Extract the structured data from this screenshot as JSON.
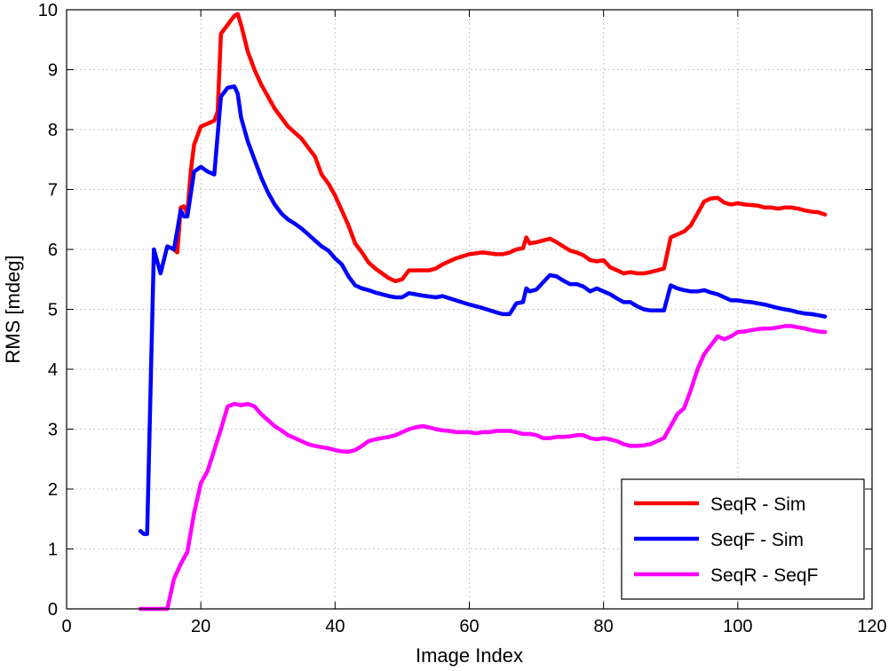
{
  "chart_data": {
    "type": "line",
    "title": "",
    "xlabel": "Image Index",
    "ylabel": "RMS [mdeg]",
    "xlim": [
      0,
      120
    ],
    "ylim": [
      0,
      10
    ],
    "xticks": [
      0,
      20,
      40,
      60,
      80,
      100,
      120
    ],
    "yticks": [
      0,
      1,
      2,
      3,
      4,
      5,
      6,
      7,
      8,
      9,
      10
    ],
    "grid": true,
    "legend_position": "bottom-right",
    "series": [
      {
        "name": "SeqR - Sim",
        "color": "#ff0000",
        "points": [
          [
            16,
            6.0
          ],
          [
            16.5,
            5.95
          ],
          [
            17,
            6.7
          ],
          [
            17.5,
            6.72
          ],
          [
            18,
            6.6
          ],
          [
            18.5,
            7.3
          ],
          [
            19,
            7.75
          ],
          [
            20,
            8.05
          ],
          [
            21,
            8.1
          ],
          [
            22,
            8.15
          ],
          [
            22.5,
            8.3
          ],
          [
            23,
            9.6
          ],
          [
            24,
            9.75
          ],
          [
            25,
            9.9
          ],
          [
            25.5,
            9.93
          ],
          [
            26,
            9.75
          ],
          [
            27,
            9.3
          ],
          [
            28,
            9.0
          ],
          [
            29,
            8.75
          ],
          [
            30,
            8.55
          ],
          [
            31,
            8.35
          ],
          [
            32,
            8.2
          ],
          [
            33,
            8.05
          ],
          [
            34,
            7.95
          ],
          [
            35,
            7.85
          ],
          [
            36,
            7.7
          ],
          [
            37,
            7.55
          ],
          [
            38,
            7.25
          ],
          [
            39,
            7.1
          ],
          [
            40,
            6.9
          ],
          [
            41,
            6.65
          ],
          [
            42,
            6.4
          ],
          [
            43,
            6.1
          ],
          [
            44,
            5.95
          ],
          [
            45,
            5.78
          ],
          [
            46,
            5.68
          ],
          [
            47,
            5.6
          ],
          [
            48,
            5.52
          ],
          [
            49,
            5.47
          ],
          [
            50,
            5.5
          ],
          [
            51,
            5.65
          ],
          [
            52,
            5.65
          ],
          [
            54,
            5.65
          ],
          [
            55,
            5.68
          ],
          [
            56,
            5.75
          ],
          [
            57,
            5.8
          ],
          [
            58,
            5.85
          ],
          [
            60,
            5.92
          ],
          [
            62,
            5.95
          ],
          [
            64,
            5.92
          ],
          [
            65,
            5.92
          ],
          [
            66,
            5.95
          ],
          [
            67,
            6.0
          ],
          [
            68,
            6.02
          ],
          [
            68.5,
            6.2
          ],
          [
            69,
            6.1
          ],
          [
            70,
            6.12
          ],
          [
            71,
            6.15
          ],
          [
            72,
            6.18
          ],
          [
            73,
            6.12
          ],
          [
            74,
            6.05
          ],
          [
            75,
            5.98
          ],
          [
            76,
            5.95
          ],
          [
            77,
            5.9
          ],
          [
            78,
            5.82
          ],
          [
            79,
            5.8
          ],
          [
            80,
            5.82
          ],
          [
            81,
            5.7
          ],
          [
            82,
            5.65
          ],
          [
            83,
            5.6
          ],
          [
            84,
            5.62
          ],
          [
            85,
            5.6
          ],
          [
            86,
            5.6
          ],
          [
            87,
            5.62
          ],
          [
            88,
            5.65
          ],
          [
            89,
            5.68
          ],
          [
            90,
            6.2
          ],
          [
            91,
            6.25
          ],
          [
            92,
            6.3
          ],
          [
            93,
            6.4
          ],
          [
            94,
            6.6
          ],
          [
            95,
            6.8
          ],
          [
            96,
            6.85
          ],
          [
            97,
            6.86
          ],
          [
            98,
            6.78
          ],
          [
            99,
            6.75
          ],
          [
            100,
            6.77
          ],
          [
            101,
            6.75
          ],
          [
            102,
            6.74
          ],
          [
            103,
            6.73
          ],
          [
            104,
            6.7
          ],
          [
            105,
            6.7
          ],
          [
            106,
            6.68
          ],
          [
            107,
            6.7
          ],
          [
            108,
            6.7
          ],
          [
            109,
            6.68
          ],
          [
            110,
            6.65
          ],
          [
            111,
            6.63
          ],
          [
            112,
            6.62
          ],
          [
            113,
            6.58
          ]
        ]
      },
      {
        "name": "SeqF - Sim",
        "color": "#0000ff",
        "points": [
          [
            11,
            1.3
          ],
          [
            11.5,
            1.25
          ],
          [
            12,
            1.25
          ],
          [
            13,
            6.0
          ],
          [
            14,
            5.6
          ],
          [
            15,
            6.05
          ],
          [
            16,
            6.0
          ],
          [
            17,
            6.65
          ],
          [
            17.5,
            6.55
          ],
          [
            18,
            6.55
          ],
          [
            19,
            7.3
          ],
          [
            20,
            7.38
          ],
          [
            21,
            7.3
          ],
          [
            22,
            7.25
          ],
          [
            23,
            8.55
          ],
          [
            24,
            8.7
          ],
          [
            25,
            8.72
          ],
          [
            25.5,
            8.6
          ],
          [
            26,
            8.2
          ],
          [
            27,
            7.8
          ],
          [
            28,
            7.5
          ],
          [
            29,
            7.2
          ],
          [
            30,
            6.95
          ],
          [
            31,
            6.75
          ],
          [
            32,
            6.6
          ],
          [
            33,
            6.5
          ],
          [
            34,
            6.43
          ],
          [
            35,
            6.35
          ],
          [
            36,
            6.25
          ],
          [
            37,
            6.15
          ],
          [
            38,
            6.05
          ],
          [
            39,
            5.98
          ],
          [
            40,
            5.85
          ],
          [
            41,
            5.75
          ],
          [
            42,
            5.55
          ],
          [
            43,
            5.4
          ],
          [
            44,
            5.35
          ],
          [
            45,
            5.32
          ],
          [
            46,
            5.28
          ],
          [
            47,
            5.25
          ],
          [
            48,
            5.22
          ],
          [
            49,
            5.2
          ],
          [
            50,
            5.2
          ],
          [
            51,
            5.27
          ],
          [
            52,
            5.25
          ],
          [
            53,
            5.23
          ],
          [
            55,
            5.2
          ],
          [
            56,
            5.22
          ],
          [
            58,
            5.15
          ],
          [
            60,
            5.08
          ],
          [
            62,
            5.02
          ],
          [
            64,
            4.95
          ],
          [
            65,
            4.92
          ],
          [
            66,
            4.92
          ],
          [
            67,
            5.1
          ],
          [
            68,
            5.12
          ],
          [
            68.5,
            5.35
          ],
          [
            69,
            5.3
          ],
          [
            70,
            5.33
          ],
          [
            71,
            5.45
          ],
          [
            72,
            5.57
          ],
          [
            73,
            5.55
          ],
          [
            74,
            5.48
          ],
          [
            75,
            5.42
          ],
          [
            76,
            5.42
          ],
          [
            77,
            5.38
          ],
          [
            78,
            5.3
          ],
          [
            79,
            5.35
          ],
          [
            80,
            5.3
          ],
          [
            81,
            5.25
          ],
          [
            82,
            5.18
          ],
          [
            83,
            5.12
          ],
          [
            84,
            5.12
          ],
          [
            85,
            5.05
          ],
          [
            86,
            5.0
          ],
          [
            87,
            4.98
          ],
          [
            88,
            4.98
          ],
          [
            89,
            4.98
          ],
          [
            90,
            5.4
          ],
          [
            91,
            5.35
          ],
          [
            92,
            5.32
          ],
          [
            93,
            5.3
          ],
          [
            94,
            5.3
          ],
          [
            95,
            5.32
          ],
          [
            96,
            5.28
          ],
          [
            97,
            5.25
          ],
          [
            98,
            5.2
          ],
          [
            99,
            5.15
          ],
          [
            100,
            5.15
          ],
          [
            101,
            5.13
          ],
          [
            102,
            5.12
          ],
          [
            103,
            5.1
          ],
          [
            104,
            5.08
          ],
          [
            105,
            5.05
          ],
          [
            106,
            5.02
          ],
          [
            107,
            5.0
          ],
          [
            108,
            4.98
          ],
          [
            109,
            4.95
          ],
          [
            110,
            4.93
          ],
          [
            111,
            4.92
          ],
          [
            112,
            4.9
          ],
          [
            113,
            4.88
          ]
        ]
      },
      {
        "name": "SeqR - SeqF",
        "color": "#ff00ff",
        "points": [
          [
            11,
            0.0
          ],
          [
            12,
            0.0
          ],
          [
            13,
            0.0
          ],
          [
            14,
            0.0
          ],
          [
            15,
            0.0
          ],
          [
            16,
            0.5
          ],
          [
            17,
            0.75
          ],
          [
            18,
            0.95
          ],
          [
            19,
            1.6
          ],
          [
            20,
            2.1
          ],
          [
            21,
            2.3
          ],
          [
            22,
            2.65
          ],
          [
            23,
            3.0
          ],
          [
            24,
            3.38
          ],
          [
            25,
            3.42
          ],
          [
            26,
            3.4
          ],
          [
            27,
            3.42
          ],
          [
            28,
            3.38
          ],
          [
            29,
            3.25
          ],
          [
            30,
            3.15
          ],
          [
            31,
            3.05
          ],
          [
            32,
            2.98
          ],
          [
            33,
            2.9
          ],
          [
            34,
            2.85
          ],
          [
            35,
            2.8
          ],
          [
            36,
            2.75
          ],
          [
            37,
            2.72
          ],
          [
            38,
            2.7
          ],
          [
            39,
            2.68
          ],
          [
            40,
            2.65
          ],
          [
            41,
            2.63
          ],
          [
            42,
            2.62
          ],
          [
            43,
            2.65
          ],
          [
            44,
            2.72
          ],
          [
            45,
            2.8
          ],
          [
            46,
            2.83
          ],
          [
            47,
            2.85
          ],
          [
            48,
            2.87
          ],
          [
            49,
            2.9
          ],
          [
            50,
            2.95
          ],
          [
            51,
            3.0
          ],
          [
            52,
            3.03
          ],
          [
            53,
            3.05
          ],
          [
            54,
            3.03
          ],
          [
            55,
            3.0
          ],
          [
            56,
            2.98
          ],
          [
            57,
            2.97
          ],
          [
            58,
            2.95
          ],
          [
            59,
            2.95
          ],
          [
            60,
            2.95
          ],
          [
            61,
            2.93
          ],
          [
            62,
            2.95
          ],
          [
            63,
            2.95
          ],
          [
            64,
            2.97
          ],
          [
            65,
            2.97
          ],
          [
            66,
            2.97
          ],
          [
            67,
            2.95
          ],
          [
            68,
            2.92
          ],
          [
            69,
            2.92
          ],
          [
            70,
            2.9
          ],
          [
            71,
            2.85
          ],
          [
            72,
            2.85
          ],
          [
            73,
            2.87
          ],
          [
            74,
            2.87
          ],
          [
            75,
            2.88
          ],
          [
            76,
            2.9
          ],
          [
            77,
            2.9
          ],
          [
            78,
            2.85
          ],
          [
            79,
            2.83
          ],
          [
            80,
            2.85
          ],
          [
            81,
            2.83
          ],
          [
            82,
            2.8
          ],
          [
            83,
            2.75
          ],
          [
            84,
            2.72
          ],
          [
            85,
            2.72
          ],
          [
            86,
            2.73
          ],
          [
            87,
            2.75
          ],
          [
            88,
            2.8
          ],
          [
            89,
            2.85
          ],
          [
            90,
            3.05
          ],
          [
            91,
            3.25
          ],
          [
            92,
            3.35
          ],
          [
            93,
            3.65
          ],
          [
            94,
            4.0
          ],
          [
            95,
            4.25
          ],
          [
            96,
            4.4
          ],
          [
            97,
            4.55
          ],
          [
            98,
            4.5
          ],
          [
            99,
            4.55
          ],
          [
            100,
            4.62
          ],
          [
            101,
            4.63
          ],
          [
            102,
            4.65
          ],
          [
            103,
            4.67
          ],
          [
            104,
            4.68
          ],
          [
            105,
            4.68
          ],
          [
            106,
            4.7
          ],
          [
            107,
            4.72
          ],
          [
            108,
            4.72
          ],
          [
            109,
            4.7
          ],
          [
            110,
            4.68
          ],
          [
            111,
            4.65
          ],
          [
            112,
            4.63
          ],
          [
            113,
            4.62
          ]
        ]
      }
    ]
  }
}
